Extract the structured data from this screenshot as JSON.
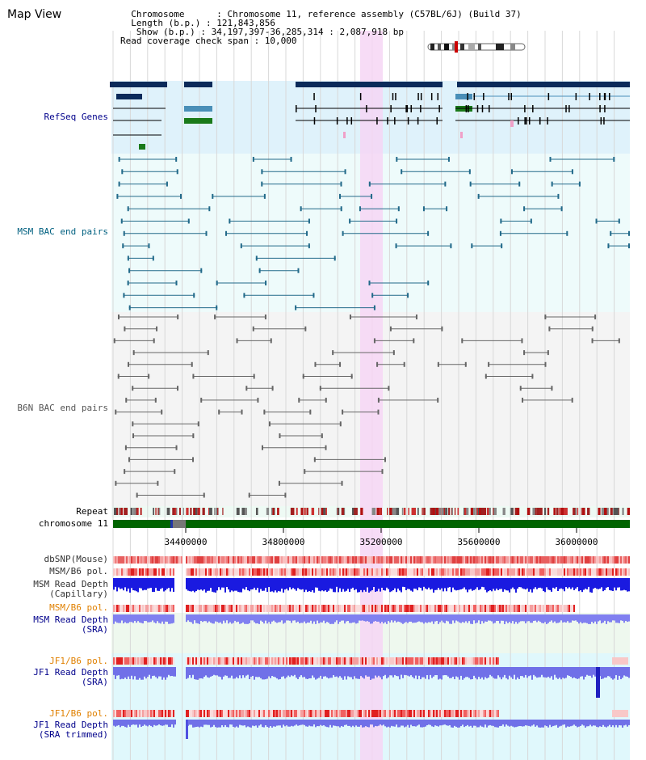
{
  "header": {
    "title": "Map View",
    "info_lines": [
      "  Chromosome      : Chromosome 11, reference assembly (C57BL/6J) (Build 37)",
      "  Length (b.p.) : 121,843,856",
      "   Show (b.p.) : 34,197,397-36,285,314 : 2,087,918 bp",
      "Read coverage check span : 10,000"
    ]
  },
  "tracks": {
    "refseq": "RefSeq Genes",
    "msm_bac": "MSM BAC end pairs",
    "b6n_bac": "B6N BAC end pairs",
    "repeat": "Repeat",
    "chromosome": "chromosome 11",
    "dbsnp": "dbSNP(Mouse)",
    "msm_b6_pol": "MSM/B6 pol.",
    "msm_read_depth_cap_1": "MSM Read Depth",
    "msm_read_depth_cap_2": "(Capillary)",
    "msm_b6_pol_2": "MSM/B6 pol.",
    "msm_read_depth_sra_1": "MSM Read Depth",
    "msm_read_depth_sra_2": "(SRA)",
    "jf1_b6_pol": "JF1/B6 pol.",
    "jf1_read_depth_sra_1": "JF1 Read Depth",
    "jf1_read_depth_sra_2": "(SRA)",
    "jf1_b6_pol_2": "JF1/B6 pol.",
    "jf1_read_depth_trim_1": "JF1 Read Depth",
    "jf1_read_depth_trim_2": "(SRA trimmed)"
  },
  "axis": {
    "ticks": [
      "34400000",
      "34800000",
      "35200000",
      "35600000",
      "36000000"
    ]
  },
  "colors": {
    "label_blue": "#00008b",
    "label_teal": "#006080",
    "label_gray": "#555555",
    "label_orange": "#e08000",
    "highlight": "#f6d6f4",
    "chrom_green": "#006400"
  }
}
